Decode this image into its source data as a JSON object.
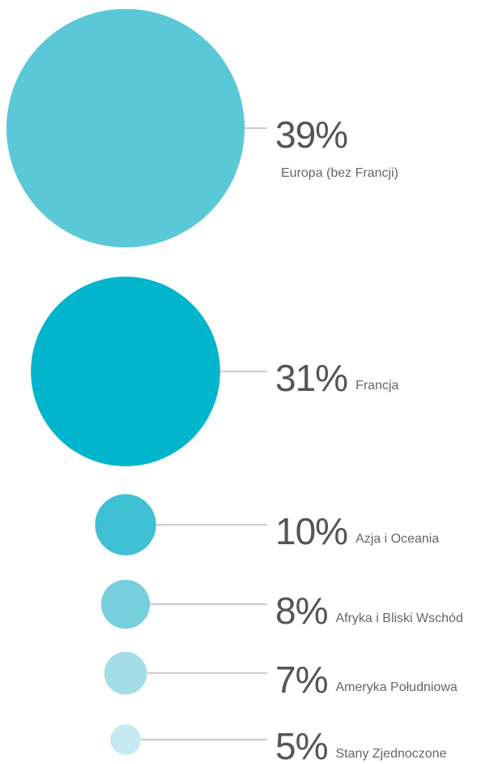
{
  "chart_data": {
    "type": "bubble",
    "categories": [
      "Europa (bez Francji)",
      "Francja",
      "Azja i Oceania",
      "Afryka i Bliski Wschód",
      "Ameryka Południowa",
      "Stany Zjednoczone"
    ],
    "values": [
      39,
      31,
      10,
      8,
      7,
      5
    ],
    "value_labels": [
      "39%",
      "31%",
      "10%",
      "8%",
      "7%",
      "5%"
    ],
    "colors": [
      "#5bc8d8",
      "#00b5cc",
      "#3fc0d4",
      "#76cfdd",
      "#a3dde8",
      "#c5e9f0"
    ]
  }
}
